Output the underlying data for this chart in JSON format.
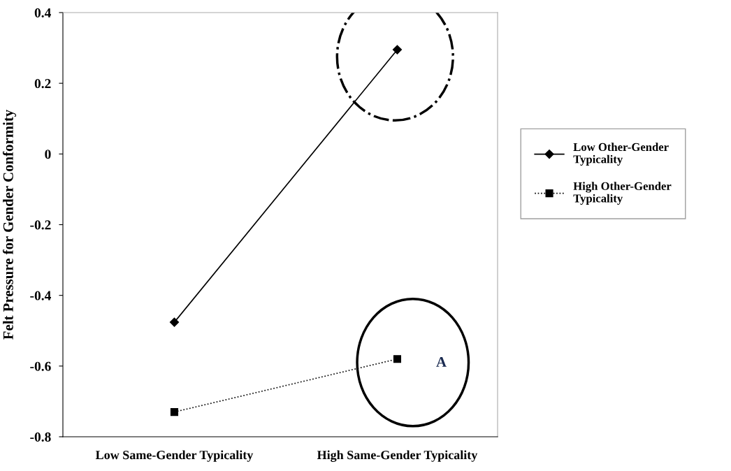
{
  "chart_data": {
    "type": "line",
    "ylabel": "Felt Pressure for Gender Conformity",
    "categories": [
      "Low Same-Gender Typicality",
      "High Same-Gender Typicality"
    ],
    "series": [
      {
        "name": "Low Other-Gender\nTypicality",
        "color": "#000000",
        "values": [
          -0.476,
          0.295
        ],
        "marker": "diamond",
        "line_style": "solid"
      },
      {
        "name": "High Other-Gender\nTypicality",
        "color": "#000000",
        "values": [
          -0.73,
          -0.58
        ],
        "marker": "square",
        "line_style": "dotted"
      }
    ],
    "ylim": [
      -0.8,
      0.4
    ],
    "yticks": [
      {
        "value": -0.8,
        "label": "-0.8"
      },
      {
        "value": -0.6,
        "label": "-0.6"
      },
      {
        "value": -0.4,
        "label": "-0.4"
      },
      {
        "value": -0.2,
        "label": "-0.2"
      },
      0,
      0.2,
      0.4
    ],
    "annotations": [
      {
        "text": "A",
        "x": "High Same-Gender Typicality",
        "y": -0.58
      }
    ],
    "grid": false,
    "legend": "right"
  }
}
